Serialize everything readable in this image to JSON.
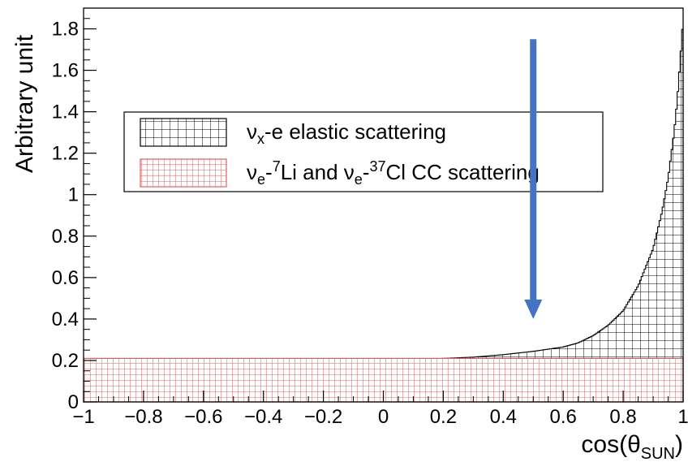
{
  "chart_data": {
    "type": "histogram",
    "xlabel": {
      "main": "cos(θ",
      "sub": "SUN",
      "close": ")"
    },
    "ylabel": "Arbitrary unit",
    "xlim": [
      -1,
      1
    ],
    "ylim": [
      0,
      1.9
    ],
    "x_ticks": [
      -1,
      -0.8,
      -0.6,
      -0.4,
      -0.2,
      0,
      0.2,
      0.4,
      0.6,
      0.8,
      1
    ],
    "x_tick_labels": [
      "−1",
      "−0.8",
      "−0.6",
      "−0.4",
      "−0.2",
      "0",
      "0.2",
      "0.4",
      "0.6",
      "0.8",
      "1"
    ],
    "y_ticks": [
      0,
      0.2,
      0.4,
      0.6,
      0.8,
      1,
      1.2,
      1.4,
      1.6,
      1.8
    ],
    "y_tick_labels": [
      "0",
      "0.2",
      "0.4",
      "0.6",
      "0.8",
      "1",
      "1.2",
      "1.4",
      "1.6",
      "1.8"
    ],
    "series": [
      {
        "name": "ν_x-e elastic scattering",
        "legend": {
          "pre": "ν",
          "sub": "x",
          "post": "-e elastic scattering"
        },
        "pattern": "black-grid",
        "color": "#000000",
        "points": [
          [
            0.0,
            0.2
          ],
          [
            0.1,
            0.203
          ],
          [
            0.2,
            0.21
          ],
          [
            0.3,
            0.216
          ],
          [
            0.4,
            0.228
          ],
          [
            0.5,
            0.244
          ],
          [
            0.6,
            0.265
          ],
          [
            0.65,
            0.285
          ],
          [
            0.7,
            0.32
          ],
          [
            0.75,
            0.37
          ],
          [
            0.8,
            0.44
          ],
          [
            0.85,
            0.56
          ],
          [
            0.9,
            0.74
          ],
          [
            0.93,
            0.92
          ],
          [
            0.95,
            1.08
          ],
          [
            0.97,
            1.3
          ],
          [
            0.98,
            1.45
          ],
          [
            0.99,
            1.64
          ],
          [
            1.0,
            1.85
          ]
        ]
      },
      {
        "name": "ν_e-7Li and ν_e-37Cl CC scattering",
        "legend": {
          "p1": "ν",
          "s1": "e",
          "p2": "-",
          "sup1": "7",
          "p3": "Li and ν",
          "s2": "e",
          "p4": "-",
          "sup2": "37",
          "p5": "Cl CC scattering"
        },
        "pattern": "red-grid",
        "color": "#e06060",
        "value": 0.21
      }
    ],
    "annotation": {
      "type": "arrow",
      "color": "#4472c4",
      "x": 0.5,
      "y_from": 1.75,
      "y_to": 0.4
    },
    "legend_position": "upper-left"
  }
}
